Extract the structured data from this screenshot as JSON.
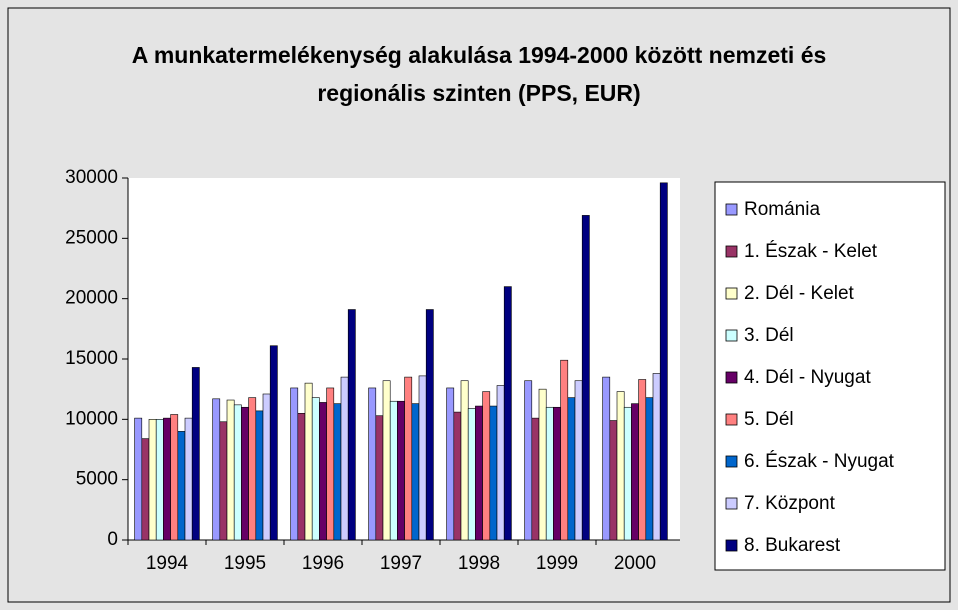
{
  "chart_data": {
    "type": "bar",
    "title": "A munkatermelékenység alakulása 1994-2000 között nemzeti és regionális szinten (PPS, EUR)",
    "categories": [
      "1994",
      "1995",
      "1996",
      "1997",
      "1998",
      "1999",
      "2000"
    ],
    "series": [
      {
        "name": "Románia",
        "color": "#9999ff",
        "values": [
          10100,
          11700,
          12600,
          12600,
          12600,
          13200,
          13500
        ]
      },
      {
        "name": "1. Észak - Kelet",
        "color": "#993366",
        "values": [
          8400,
          9800,
          10500,
          10300,
          10600,
          10100,
          9900
        ]
      },
      {
        "name": "2. Dél - Kelet",
        "color": "#ffffcc",
        "values": [
          10000,
          11600,
          13000,
          13200,
          13200,
          12500,
          12300
        ]
      },
      {
        "name": "3. Dél",
        "color": "#ccffff",
        "values": [
          10000,
          11200,
          11800,
          11500,
          10900,
          11000,
          11000
        ]
      },
      {
        "name": "4. Dél - Nyugat",
        "color": "#660066",
        "values": [
          10100,
          11000,
          11400,
          11500,
          11100,
          11000,
          11300
        ]
      },
      {
        "name": "5. Dél",
        "color": "#ff8080",
        "values": [
          10400,
          11800,
          12600,
          13500,
          12300,
          14900,
          13300
        ]
      },
      {
        "name": "6. Észak - Nyugat",
        "color": "#0066cc",
        "values": [
          9000,
          10700,
          11300,
          11300,
          11100,
          11800,
          11800
        ]
      },
      {
        "name": "7. Központ",
        "color": "#ccccff",
        "values": [
          10100,
          12100,
          13500,
          13600,
          12800,
          13200,
          13800
        ]
      },
      {
        "name": "8. Bukarest",
        "color": "#000080",
        "values": [
          14300,
          16100,
          19100,
          19100,
          21000,
          26900,
          29600
        ]
      }
    ],
    "ylim": [
      0,
      30000
    ],
    "yticks": [
      0,
      5000,
      10000,
      15000,
      20000,
      25000,
      30000
    ],
    "grid": false,
    "legend": "right"
  }
}
